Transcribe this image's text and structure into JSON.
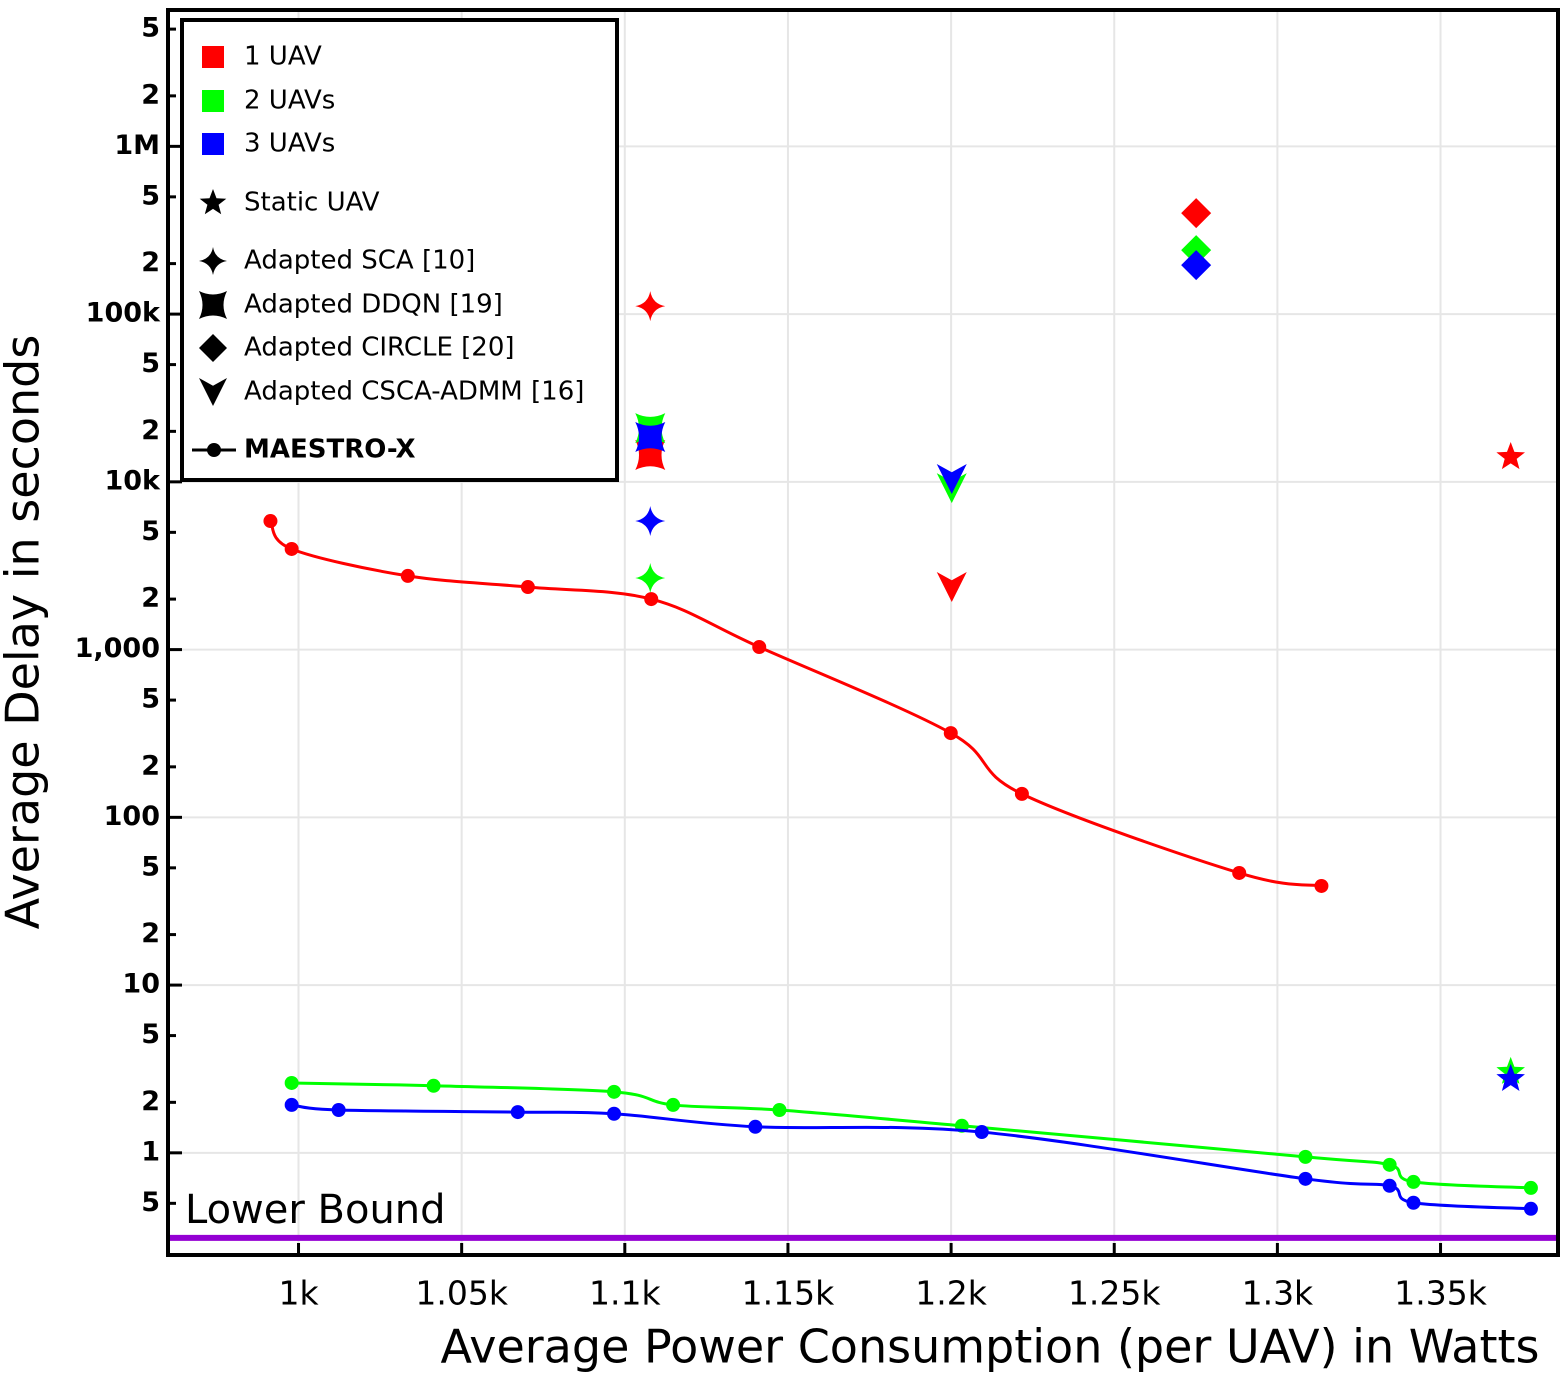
{
  "chart_data": {
    "type": "line-scatter",
    "xlabel": "Average Power Consumption (per UAV) in Watts",
    "ylabel": "Average Delay in seconds",
    "log_y": true,
    "grid": true,
    "xlim": [
      960,
      1386
    ],
    "ylim": [
      0.246,
      6500000
    ],
    "xticks": [
      {
        "value": 1000,
        "label": "1k"
      },
      {
        "value": 1050,
        "label": "1.05k"
      },
      {
        "value": 1100,
        "label": "1.1k"
      },
      {
        "value": 1150,
        "label": "1.15k"
      },
      {
        "value": 1200,
        "label": "1.2k"
      },
      {
        "value": 1250,
        "label": "1.25k"
      },
      {
        "value": 1300,
        "label": "1.3k"
      },
      {
        "value": 1350,
        "label": "1.35k"
      }
    ],
    "yticks": [
      {
        "value": 5000000,
        "label": "5"
      },
      {
        "value": 2000000,
        "label": "2"
      },
      {
        "value": 1000000,
        "label": "1M"
      },
      {
        "value": 500000,
        "label": "5"
      },
      {
        "value": 200000,
        "label": "2"
      },
      {
        "value": 100000,
        "label": "100k"
      },
      {
        "value": 50000,
        "label": "5"
      },
      {
        "value": 20000,
        "label": "2"
      },
      {
        "value": 10000,
        "label": "10k"
      },
      {
        "value": 5000,
        "label": "5"
      },
      {
        "value": 2000,
        "label": "2"
      },
      {
        "value": 1000,
        "label": "1,000"
      },
      {
        "value": 500,
        "label": "5"
      },
      {
        "value": 200,
        "label": "2"
      },
      100,
      {
        "value": 50,
        "label": "5"
      },
      {
        "value": 20,
        "label": "2"
      },
      10,
      5,
      2,
      1,
      {
        "value": 0.5,
        "label": "5"
      }
    ],
    "groups": [
      {
        "name": "1 UAV",
        "color": "#ff0000"
      },
      {
        "name": "2 UAVs",
        "color": "#00ff00"
      },
      {
        "name": "3 UAVs",
        "color": "#0000ff"
      }
    ],
    "methods": [
      {
        "name": "Static UAV",
        "marker": "star",
        "x": [
          [
            1371.5
          ],
          [
            1371.5
          ],
          [
            1371.5
          ]
        ],
        "y": [
          [
            14060
          ],
          [
            3.04
          ],
          [
            2.76
          ]
        ]
      },
      {
        "name": "Adapted SCA [10]",
        "marker": "star4",
        "x": [
          [
            1107.8
          ],
          [
            1107.8
          ],
          [
            1107.8
          ]
        ],
        "y": [
          [
            111600
          ],
          [
            2670
          ],
          [
            5840
          ]
        ]
      },
      {
        "name": "Adapted DDQN [19]",
        "marker": "concave-square",
        "x": [
          [
            1107.8
          ],
          [
            1107.8
          ],
          [
            1107.8
          ]
        ],
        "y": [
          [
            14450
          ],
          [
            20900
          ],
          [
            18500
          ]
        ]
      },
      {
        "name": "Adapted CIRCLE [20]",
        "marker": "diamond",
        "x": [
          [
            1275.1
          ],
          [
            1275.1
          ],
          [
            1275.1
          ]
        ],
        "y": [
          [
            400000
          ],
          [
            240500
          ],
          [
            196000
          ]
        ]
      },
      {
        "name": "Adapted CSCA-ADMM [16]",
        "marker": "arrow-down",
        "x": [
          [
            1200.2
          ],
          [
            1200.2
          ],
          [
            1200.2
          ]
        ],
        "y": [
          [
            2360
          ],
          [
            9180
          ],
          [
            10400
          ]
        ]
      },
      {
        "name": "MAESTRO-X",
        "marker": "line",
        "x": [
          [
            991.4,
            997.9,
            1033.5,
            1070.3,
            1108.1,
            1141.2,
            1199.9,
            1221.7,
            1288.3,
            1313.5
          ],
          [
            997.9,
            1041.4,
            1096.7,
            1114.8,
            1147.4,
            1203.3,
            1308.6,
            1334.4,
            1341.7,
            1377.7
          ],
          [
            997.9,
            1012.3,
            1067.2,
            1096.7,
            1140.0,
            1209.4,
            1308.6,
            1334.4,
            1341.7,
            1377.7
          ]
        ],
        "y": [
          [
            5840,
            3980,
            2750,
            2360,
            2000,
            1036,
            318,
            138,
            46.6,
            39
          ],
          [
            2.61,
            2.51,
            2.31,
            1.93,
            1.8,
            1.45,
            0.946,
            0.848,
            0.671,
            0.618
          ],
          [
            1.93,
            1.8,
            1.75,
            1.71,
            1.43,
            1.33,
            0.7,
            0.636,
            0.504,
            0.464
          ]
        ]
      }
    ],
    "lower_bound": {
      "label": "Lower Bound",
      "value": 0.311,
      "color": "#9400d3"
    }
  }
}
